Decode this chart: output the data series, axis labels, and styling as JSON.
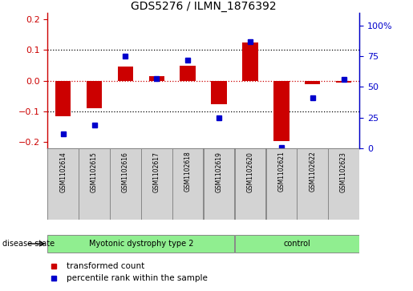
{
  "title": "GDS5276 / ILMN_1876392",
  "samples": [
    "GSM1102614",
    "GSM1102615",
    "GSM1102616",
    "GSM1102617",
    "GSM1102618",
    "GSM1102619",
    "GSM1102620",
    "GSM1102621",
    "GSM1102622",
    "GSM1102623"
  ],
  "red_bars": [
    -0.115,
    -0.09,
    0.045,
    0.015,
    0.05,
    -0.075,
    0.125,
    -0.195,
    -0.01,
    -0.005
  ],
  "blue_dots": [
    12,
    19,
    75,
    57,
    72,
    25,
    87,
    1,
    41,
    56
  ],
  "group1_count": 6,
  "group2_count": 4,
  "group1_label": "Myotonic dystrophy type 2",
  "group2_label": "control",
  "group_color": "#90EE90",
  "sample_box_color": "#d3d3d3",
  "ylim_left": [
    -0.22,
    0.22
  ],
  "ylim_right": [
    0,
    110
  ],
  "yticks_left": [
    -0.2,
    -0.1,
    0.0,
    0.1,
    0.2
  ],
  "yticks_right": [
    0,
    25,
    50,
    75,
    100
  ],
  "ytick_labels_right": [
    "0",
    "25",
    "50",
    "75",
    "100%"
  ],
  "bar_color": "#CC0000",
  "dot_color": "#0000CC",
  "legend_red": "transformed count",
  "legend_blue": "percentile rank within the sample",
  "disease_label": "disease state",
  "title_fontsize": 10,
  "tick_fontsize": 8,
  "label_fontsize": 7,
  "legend_fontsize": 7.5
}
